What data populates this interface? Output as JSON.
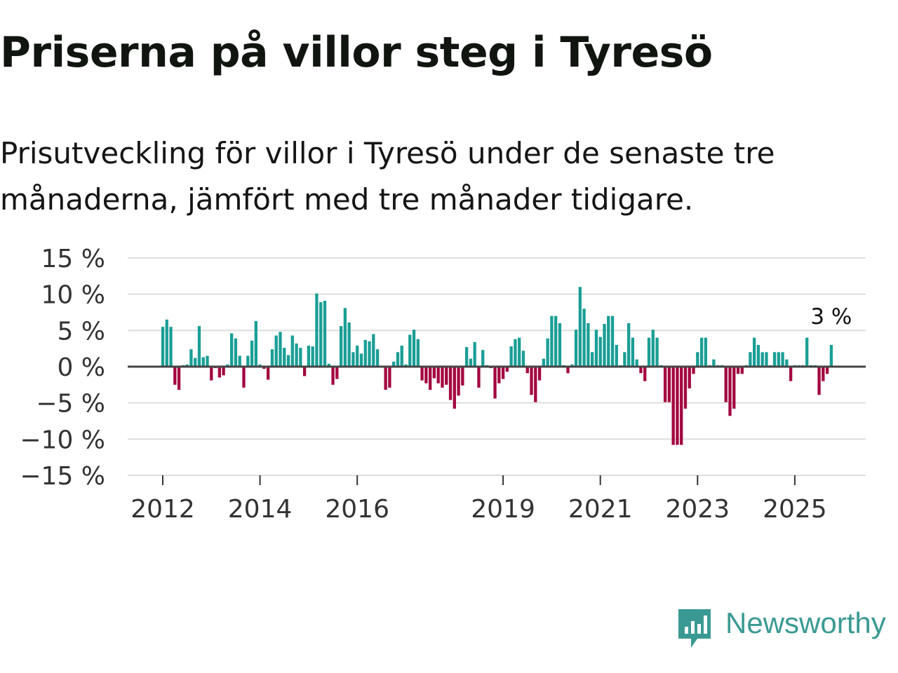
{
  "title": "Priserna på villor steg i Tyresö",
  "subtitle": "Prisutveckling för villor i Tyresö under de senaste tre månaderna, jämfört med tre månader tidigare.",
  "brand": {
    "name": "Newsworthy",
    "color": "#3a9a93",
    "icon": "newsworthy-logo-icon"
  },
  "colors": {
    "positive": "#1a9e96",
    "negative": "#a3063f",
    "zero_line": "#444444",
    "grid": "#dddddd"
  },
  "chart_data": {
    "type": "bar",
    "title": "Priserna på villor steg i Tyresö",
    "ylabel": "",
    "xlabel": "",
    "unit": "%",
    "ylim": [
      -15,
      15
    ],
    "yticks": [
      {
        "value": 15,
        "label": "15 %"
      },
      {
        "value": 10,
        "label": "10 %"
      },
      {
        "value": 5,
        "label": "5 %"
      },
      {
        "value": 0,
        "label": "0 %"
      },
      {
        "value": -5,
        "label": "−5 %"
      },
      {
        "value": -10,
        "label": "−10 %"
      },
      {
        "value": -15,
        "label": "−15 %"
      }
    ],
    "xticks": [
      {
        "label": "2012",
        "index": 0
      },
      {
        "label": "2014",
        "index": 24
      },
      {
        "label": "2016",
        "index": 48
      },
      {
        "label": "2019",
        "index": 84
      },
      {
        "label": "2021",
        "index": 108
      },
      {
        "label": "2023",
        "index": 132
      },
      {
        "label": "2025",
        "index": 156
      }
    ],
    "start": "2012-01",
    "frequency": "monthly",
    "values": [
      5.5,
      6.5,
      5.5,
      -2.5,
      -3.2,
      0.2,
      0.3,
      2.4,
      1.2,
      5.6,
      1.3,
      1.5,
      -1.9,
      -0.2,
      -1.5,
      -1.2,
      0.3,
      4.6,
      3.9,
      1.5,
      -2.9,
      1.5,
      3.6,
      6.3,
      0.3,
      -0.3,
      -1.8,
      2.4,
      4.3,
      4.8,
      2.6,
      1.6,
      4.3,
      3.2,
      2.6,
      -1.3,
      2.9,
      2.8,
      10.1,
      8.9,
      9.1,
      0.4,
      -2.5,
      -1.7,
      5.6,
      8.1,
      6.1,
      2.0,
      2.9,
      1.8,
      3.7,
      3.5,
      4.5,
      2.4,
      0.1,
      -3.2,
      -2.9,
      0.7,
      2.0,
      2.9,
      0.3,
      4.4,
      5.1,
      3.8,
      -1.9,
      -2.3,
      -3.2,
      -1.6,
      -2.3,
      -2.9,
      -2.5,
      -4.6,
      -5.8,
      -4.0,
      -2.6,
      2.7,
      1.1,
      3.4,
      -2.9,
      2.3,
      0.2,
      -0.2,
      -4.4,
      -2.3,
      -1.7,
      -0.7,
      2.8,
      3.8,
      4.0,
      2.2,
      -0.9,
      -3.9,
      -4.9,
      -1.9,
      1.1,
      3.9,
      7.0,
      7.0,
      6.0,
      0.2,
      -0.9,
      0.3,
      5.1,
      11.0,
      8.0,
      6.0,
      2.0,
      5.1,
      4.1,
      5.9,
      7.0,
      7.0,
      3.0,
      0.2,
      2.0,
      6.0,
      4.0,
      1.0,
      -0.9,
      -2.0,
      4.0,
      5.1,
      4.0,
      0.2,
      -4.9,
      -4.9,
      -10.8,
      -10.8,
      -10.8,
      -5.8,
      -3.0,
      -1.0,
      2.0,
      4.0,
      4.0,
      0.2,
      1.0,
      0.2,
      0.2,
      -4.9,
      -6.8,
      -5.8,
      -1.0,
      -1.0,
      0.2,
      2.0,
      4.0,
      3.0,
      2.0,
      2.0,
      0.2,
      2.0,
      2.0,
      2.0,
      1.0,
      -2.0,
      0.2,
      0.2,
      0.2,
      4.0,
      0.2,
      0.2,
      -3.9,
      -2.0,
      -1.0,
      3.0
    ],
    "last_value_label": "3 %"
  }
}
